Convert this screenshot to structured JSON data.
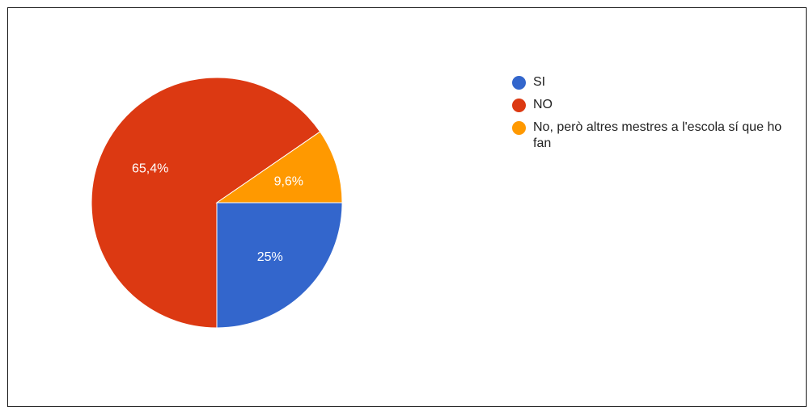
{
  "chart_data": {
    "type": "pie",
    "title": "",
    "slices": [
      {
        "label": "SI",
        "value": 25,
        "display": "25%",
        "color": "#3366cc"
      },
      {
        "label": "NO",
        "value": 65.4,
        "display": "65,4%",
        "color": "#dc3912"
      },
      {
        "label": "No, però altres mestres a l'escola sí que ho fan",
        "value": 9.6,
        "display": "9,6%",
        "color": "#ff9900"
      }
    ],
    "legend_position": "right"
  },
  "legend": {
    "items": [
      {
        "label": "SI",
        "color": "#3366cc"
      },
      {
        "label": "NO",
        "color": "#dc3912"
      },
      {
        "label": "No, però altres mestres a l'escola sí que ho fan",
        "color": "#ff9900"
      }
    ]
  }
}
